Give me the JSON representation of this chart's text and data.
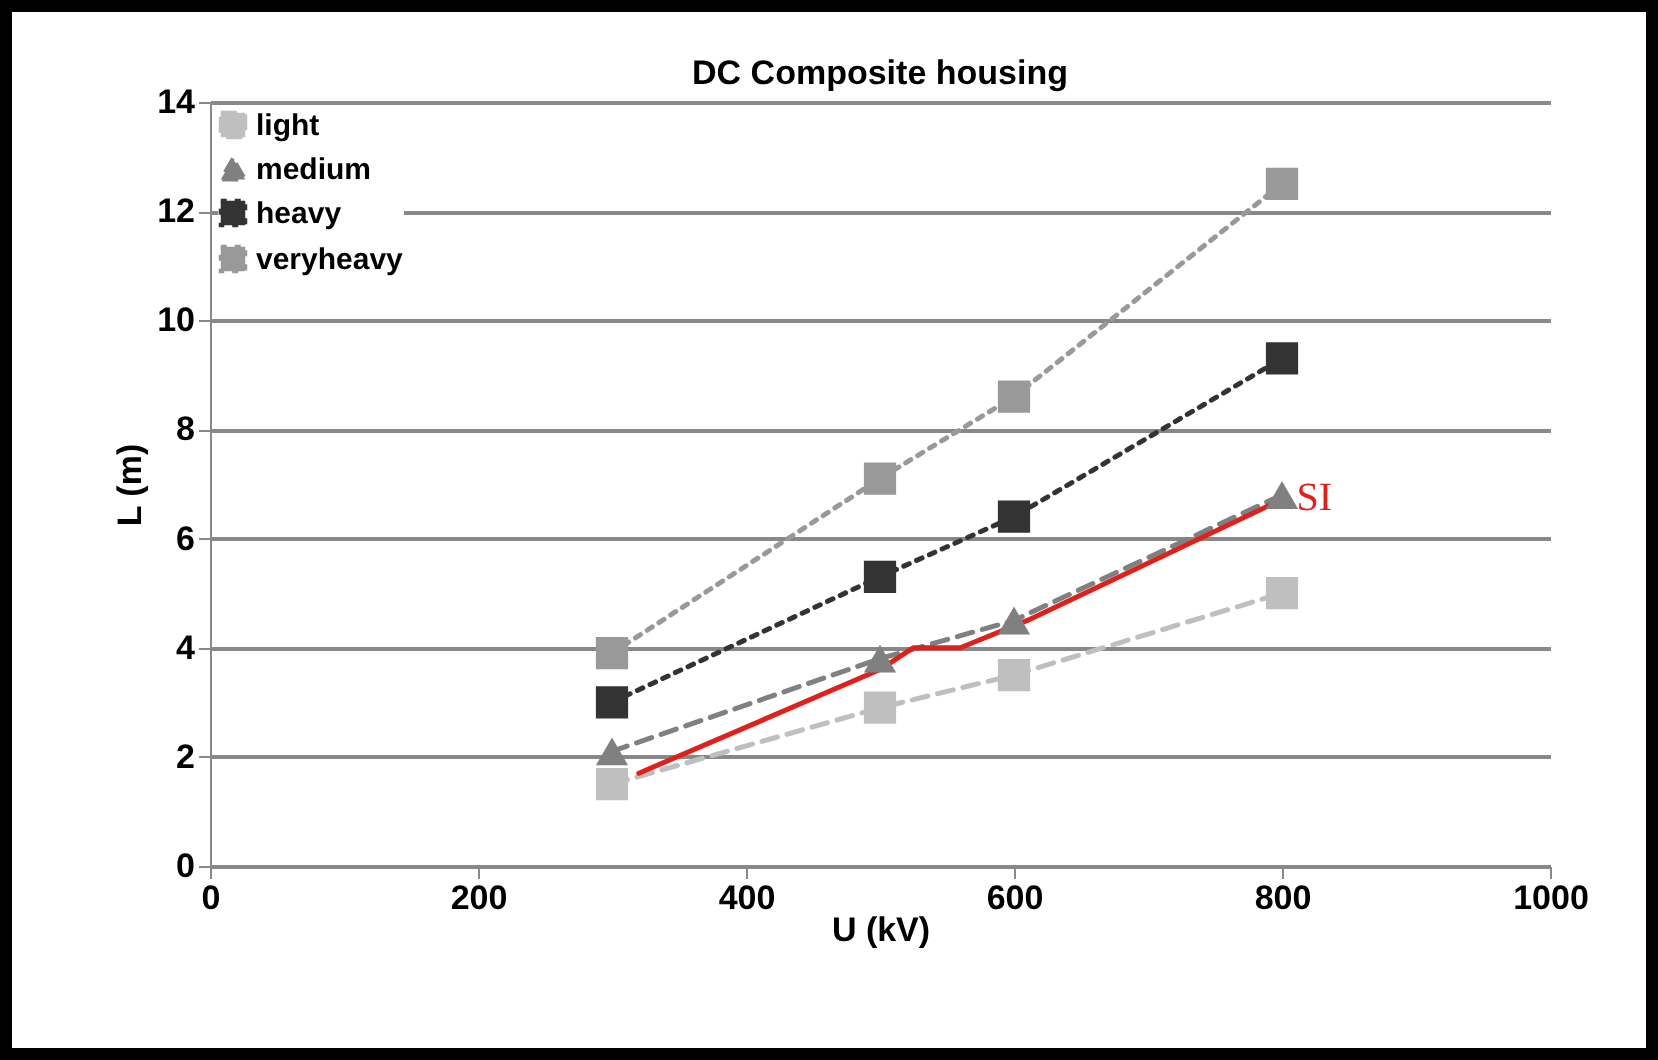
{
  "chart_data": {
    "type": "line",
    "title": "DC Composite housing",
    "xlabel": "U (kV)",
    "ylabel": "L (m)",
    "xlim": [
      0,
      1000
    ],
    "xticks": [
      0,
      200,
      400,
      600,
      800,
      1000
    ],
    "ylim": [
      0,
      14
    ],
    "yticks": [
      0,
      2,
      4,
      6,
      8,
      10,
      12,
      14
    ],
    "grid": "y",
    "legend": "top left",
    "series": [
      {
        "name": "light",
        "color": "#bfbfbf",
        "marker": "square",
        "line_style": "dashed",
        "x": [
          300,
          500,
          600,
          800
        ],
        "values": [
          1.5,
          2.9,
          3.5,
          5.0
        ]
      },
      {
        "name": "medium",
        "color": "#808080",
        "marker": "triangle",
        "line_style": "dashed",
        "x": [
          300,
          500,
          600,
          800
        ],
        "values": [
          2.1,
          3.8,
          4.5,
          6.8
        ]
      },
      {
        "name": "heavy",
        "color": "#333333",
        "marker": "square",
        "line_style": "dotted",
        "x": [
          300,
          500,
          600,
          800
        ],
        "values": [
          3.0,
          5.3,
          6.4,
          9.3
        ]
      },
      {
        "name": "veryheavy",
        "color": "#999999",
        "marker": "square",
        "line_style": "dotted",
        "x": [
          300,
          500,
          600,
          800
        ],
        "values": [
          3.9,
          7.1,
          8.6,
          12.5
        ]
      },
      {
        "name": "SI",
        "color": "#e0201b",
        "marker": "none",
        "line_style": "solid",
        "x": [
          320,
          500,
          525,
          560,
          610,
          790
        ],
        "values": [
          1.7,
          3.6,
          4.0,
          4.0,
          4.5,
          6.6
        ]
      }
    ]
  }
}
